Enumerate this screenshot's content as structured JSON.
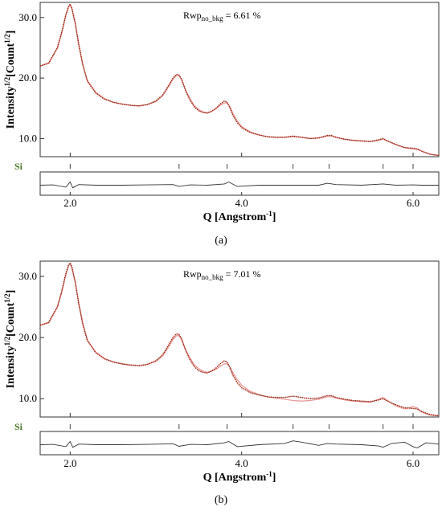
{
  "colors": {
    "observed": "#cc2200",
    "calculated": "#e89a9a",
    "difference": "#333333",
    "phase_label": "#4a7a2a"
  },
  "chart_data": [
    {
      "type": "line",
      "panel_label": "(a)",
      "ylabel_main": "Intensity",
      "ylabel_sup1": "1/2",
      "ylabel_mid": "[Count",
      "ylabel_sup2": "1/2",
      "ylabel_end": "]",
      "xlabel_main": "Q [Angstrom",
      "xlabel_sup": "-1",
      "xlabel_end": "]",
      "rwp_prefix": "Rwp",
      "rwp_sub": "no_bkg",
      "rwp_value": " = 6.61 %",
      "phase_label": "Si",
      "xlim": [
        1.65,
        6.3
      ],
      "ylim": [
        7.0,
        32.5
      ],
      "xticks": [
        "2.0",
        "4.0",
        "6.0"
      ],
      "xtick_values": [
        2.0,
        4.0,
        6.0
      ],
      "yticks": [
        "10.0",
        "20.0",
        "30.0"
      ],
      "ytick_values": [
        10.0,
        20.0,
        30.0
      ],
      "reflections": [
        2.0,
        3.27,
        3.83,
        4.6,
        5.02,
        5.65,
        6.0
      ],
      "series": [
        {
          "name": "",
          "x": [
            1.65,
            1.75,
            1.85,
            1.9,
            1.95,
            1.98,
            2.0,
            2.02,
            2.06,
            2.1,
            2.15,
            2.2,
            2.3,
            2.4,
            2.5,
            2.6,
            2.7,
            2.8,
            2.9,
            3.0,
            3.08,
            3.15,
            3.2,
            3.24,
            3.27,
            3.3,
            3.35,
            3.4,
            3.45,
            3.5,
            3.55,
            3.6,
            3.65,
            3.7,
            3.75,
            3.8,
            3.83,
            3.86,
            3.9,
            3.95,
            4.0,
            4.1,
            4.2,
            4.3,
            4.4,
            4.5,
            4.6,
            4.7,
            4.8,
            4.9,
            5.0,
            5.05,
            5.1,
            5.2,
            5.3,
            5.4,
            5.5,
            5.6,
            5.65,
            5.7,
            5.8,
            5.9,
            6.0,
            6.05,
            6.1,
            6.2,
            6.3
          ],
          "y": [
            22.0,
            22.5,
            25.0,
            27.5,
            30.5,
            31.8,
            32.2,
            31.5,
            29.0,
            25.5,
            22.0,
            19.5,
            17.5,
            16.5,
            16.0,
            15.7,
            15.5,
            15.4,
            15.6,
            16.2,
            17.2,
            18.8,
            20.0,
            20.6,
            20.5,
            19.8,
            17.8,
            16.3,
            15.2,
            14.6,
            14.3,
            14.2,
            14.5,
            15.0,
            15.7,
            16.2,
            16.0,
            15.2,
            13.8,
            12.6,
            11.8,
            11.0,
            10.6,
            10.3,
            10.2,
            10.2,
            10.4,
            10.2,
            10.0,
            10.1,
            10.5,
            10.5,
            10.2,
            9.9,
            9.7,
            9.6,
            9.5,
            9.8,
            10.0,
            9.6,
            9.0,
            8.5,
            8.4,
            8.3,
            7.9,
            7.4,
            7.2
          ]
        },
        {
          "name": "",
          "x": [
            1.65,
            1.75,
            1.85,
            1.9,
            1.95,
            1.98,
            2.0,
            2.02,
            2.06,
            2.1,
            2.15,
            2.2,
            2.3,
            2.4,
            2.5,
            2.6,
            2.7,
            2.8,
            2.9,
            3.0,
            3.08,
            3.15,
            3.2,
            3.24,
            3.27,
            3.3,
            3.35,
            3.4,
            3.45,
            3.5,
            3.55,
            3.6,
            3.65,
            3.7,
            3.75,
            3.8,
            3.83,
            3.86,
            3.9,
            3.95,
            4.0,
            4.1,
            4.2,
            4.3,
            4.4,
            4.5,
            4.6,
            4.7,
            4.8,
            4.9,
            5.0,
            5.05,
            5.1,
            5.2,
            5.3,
            5.4,
            5.5,
            5.6,
            5.65,
            5.7,
            5.8,
            5.9,
            6.0,
            6.05,
            6.1,
            6.2,
            6.3
          ],
          "y": [
            22.0,
            22.4,
            24.9,
            27.4,
            30.4,
            31.7,
            32.1,
            31.4,
            29.0,
            25.6,
            22.1,
            19.6,
            17.6,
            16.6,
            16.0,
            15.7,
            15.5,
            15.4,
            15.6,
            16.1,
            17.1,
            18.6,
            19.8,
            20.4,
            20.4,
            19.7,
            17.9,
            16.5,
            15.4,
            14.8,
            14.4,
            14.3,
            14.5,
            14.9,
            15.5,
            15.9,
            15.9,
            15.4,
            14.1,
            12.9,
            12.0,
            11.1,
            10.6,
            10.3,
            10.2,
            10.2,
            10.3,
            10.2,
            10.0,
            10.1,
            10.4,
            10.4,
            10.2,
            9.9,
            9.7,
            9.6,
            9.5,
            9.7,
            9.9,
            9.6,
            9.0,
            8.5,
            8.3,
            8.2,
            7.9,
            7.4,
            7.2
          ]
        }
      ],
      "difference": {
        "x": [
          1.65,
          1.8,
          1.95,
          2.0,
          2.03,
          2.1,
          2.3,
          2.6,
          2.9,
          3.2,
          3.27,
          3.4,
          3.6,
          3.8,
          3.85,
          3.95,
          4.2,
          4.6,
          4.9,
          5.0,
          5.1,
          5.4,
          5.65,
          5.8,
          6.0,
          6.1,
          6.3
        ],
        "y": [
          0.0,
          0.05,
          -0.3,
          0.5,
          -0.4,
          0.1,
          0.0,
          0.0,
          0.05,
          0.1,
          -0.2,
          0.05,
          0.0,
          0.2,
          0.5,
          -0.2,
          0.0,
          0.0,
          0.0,
          0.3,
          0.1,
          0.0,
          0.2,
          0.0,
          0.05,
          0.0,
          0.0
        ]
      }
    },
    {
      "type": "line",
      "panel_label": "(b)",
      "ylabel_main": "Intensity",
      "ylabel_sup1": "1/2",
      "ylabel_mid": "[Count",
      "ylabel_sup2": "1/2",
      "ylabel_end": "]",
      "xlabel_main": "Q [Angstrom",
      "xlabel_sup": "-1",
      "xlabel_end": "]",
      "rwp_prefix": "Rwp",
      "rwp_sub": "no_bkg",
      "rwp_value": " = 7.01 %",
      "phase_label": "Si",
      "xlim": [
        1.65,
        6.3
      ],
      "ylim": [
        7.0,
        32.5
      ],
      "xticks": [
        "2.0",
        "4.0",
        "6.0"
      ],
      "xtick_values": [
        2.0,
        4.0,
        6.0
      ],
      "yticks": [
        "10.0",
        "20.0",
        "30.0"
      ],
      "ytick_values": [
        10.0,
        20.0,
        30.0
      ],
      "reflections": [
        2.0,
        3.27,
        3.83,
        4.6,
        5.02,
        5.65,
        6.0
      ],
      "series": [
        {
          "name": "",
          "x": [
            1.65,
            1.75,
            1.85,
            1.9,
            1.95,
            1.98,
            2.0,
            2.02,
            2.06,
            2.1,
            2.15,
            2.2,
            2.3,
            2.4,
            2.5,
            2.6,
            2.7,
            2.8,
            2.9,
            3.0,
            3.08,
            3.15,
            3.2,
            3.24,
            3.27,
            3.3,
            3.35,
            3.4,
            3.45,
            3.5,
            3.55,
            3.6,
            3.65,
            3.7,
            3.75,
            3.8,
            3.83,
            3.86,
            3.9,
            3.95,
            4.0,
            4.1,
            4.2,
            4.3,
            4.4,
            4.5,
            4.6,
            4.7,
            4.8,
            4.9,
            5.0,
            5.05,
            5.1,
            5.2,
            5.3,
            5.4,
            5.5,
            5.6,
            5.65,
            5.7,
            5.8,
            5.9,
            6.0,
            6.05,
            6.1,
            6.2,
            6.3
          ],
          "y": [
            22.0,
            22.5,
            25.0,
            27.5,
            30.5,
            31.8,
            32.2,
            31.5,
            29.0,
            25.5,
            22.0,
            19.5,
            17.5,
            16.5,
            16.0,
            15.7,
            15.5,
            15.4,
            15.6,
            16.2,
            17.2,
            18.8,
            20.0,
            20.6,
            20.5,
            19.8,
            17.8,
            16.3,
            15.2,
            14.6,
            14.3,
            14.2,
            14.5,
            15.0,
            15.7,
            16.2,
            16.0,
            15.2,
            13.8,
            12.6,
            11.8,
            11.0,
            10.6,
            10.3,
            10.2,
            10.2,
            10.4,
            10.2,
            10.0,
            10.1,
            10.5,
            10.5,
            10.2,
            9.9,
            9.7,
            9.6,
            9.5,
            9.8,
            10.0,
            9.6,
            9.0,
            8.5,
            8.4,
            8.3,
            7.9,
            7.4,
            7.2
          ]
        },
        {
          "name": "",
          "x": [
            1.65,
            1.75,
            1.85,
            1.9,
            1.95,
            1.98,
            2.0,
            2.02,
            2.06,
            2.1,
            2.15,
            2.2,
            2.3,
            2.4,
            2.5,
            2.6,
            2.7,
            2.8,
            2.9,
            3.0,
            3.08,
            3.15,
            3.2,
            3.24,
            3.27,
            3.3,
            3.35,
            3.4,
            3.45,
            3.5,
            3.55,
            3.6,
            3.65,
            3.7,
            3.75,
            3.8,
            3.83,
            3.86,
            3.9,
            3.95,
            4.0,
            4.1,
            4.2,
            4.3,
            4.4,
            4.5,
            4.6,
            4.7,
            4.8,
            4.9,
            5.0,
            5.05,
            5.1,
            5.2,
            5.3,
            5.4,
            5.5,
            5.6,
            5.65,
            5.7,
            5.8,
            5.9,
            6.0,
            6.05,
            6.1,
            6.2,
            6.3
          ],
          "y": [
            22.0,
            22.4,
            24.9,
            27.3,
            30.3,
            31.7,
            32.1,
            31.3,
            29.1,
            25.7,
            22.2,
            19.6,
            17.6,
            16.6,
            16.0,
            15.7,
            15.5,
            15.4,
            15.6,
            16.1,
            17.0,
            18.5,
            19.7,
            20.3,
            20.3,
            19.6,
            17.9,
            16.6,
            15.5,
            14.9,
            14.5,
            14.3,
            14.5,
            14.8,
            15.3,
            15.7,
            15.7,
            15.3,
            14.2,
            13.1,
            12.2,
            11.2,
            10.7,
            10.3,
            10.1,
            9.9,
            9.7,
            9.6,
            9.7,
            9.9,
            10.3,
            10.3,
            10.1,
            9.8,
            9.6,
            9.5,
            9.4,
            9.9,
            10.2,
            9.7,
            8.8,
            8.3,
            8.7,
            8.5,
            7.8,
            7.3,
            7.2
          ]
        }
      ],
      "difference": {
        "x": [
          1.65,
          1.8,
          1.95,
          2.0,
          2.03,
          2.1,
          2.3,
          2.6,
          2.9,
          3.2,
          3.27,
          3.4,
          3.6,
          3.8,
          3.85,
          3.95,
          4.2,
          4.5,
          4.6,
          4.7,
          4.9,
          5.0,
          5.1,
          5.4,
          5.6,
          5.65,
          5.75,
          5.9,
          6.0,
          6.05,
          6.15,
          6.3
        ],
        "y": [
          0.0,
          0.05,
          -0.3,
          0.5,
          -0.4,
          0.1,
          0.0,
          0.0,
          0.05,
          0.15,
          -0.25,
          0.05,
          0.0,
          0.3,
          0.5,
          -0.3,
          0.0,
          0.2,
          0.6,
          0.4,
          -0.1,
          0.2,
          0.1,
          0.0,
          -0.2,
          -0.4,
          0.2,
          0.4,
          -0.3,
          -0.5,
          0.3,
          0.1
        ]
      }
    }
  ]
}
